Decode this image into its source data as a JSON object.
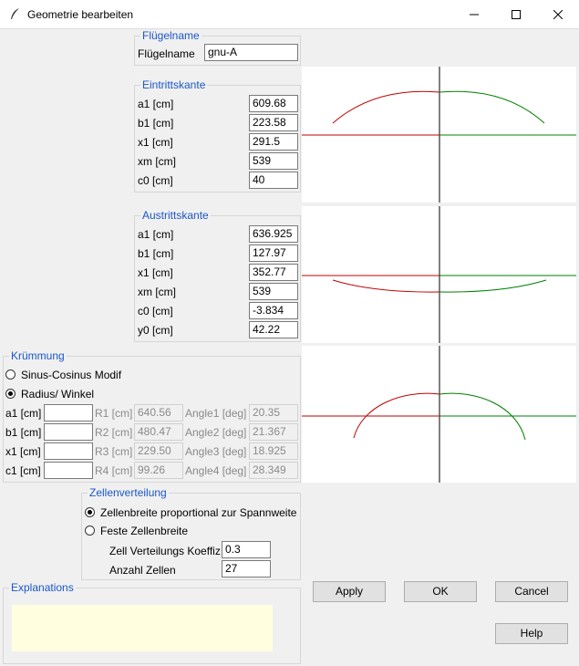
{
  "window": {
    "title": "Geometrie bearbeiten"
  },
  "wing_name": {
    "group_label": "Flügelname",
    "label": "Flügelname",
    "value": "gnu-A"
  },
  "leading_edge": {
    "group_label": "Eintrittskante",
    "fields": [
      {
        "label": "a1 [cm]",
        "value": "609.68"
      },
      {
        "label": "b1 [cm]",
        "value": "223.58"
      },
      {
        "label": "x1 [cm]",
        "value": "291.5"
      },
      {
        "label": "xm [cm]",
        "value": "539"
      },
      {
        "label": "c0 [cm]",
        "value": "40"
      }
    ]
  },
  "trailing_edge": {
    "group_label": "Austrittskante",
    "fields": [
      {
        "label": "a1 [cm]",
        "value": "636.925"
      },
      {
        "label": "b1 [cm]",
        "value": "127.97"
      },
      {
        "label": "x1 [cm]",
        "value": "352.77"
      },
      {
        "label": "xm [cm]",
        "value": "539"
      },
      {
        "label": "c0 [cm]",
        "value": "-3.834"
      },
      {
        "label": "y0 [cm]",
        "value": "42.22"
      }
    ]
  },
  "curvature": {
    "group_label": "Krümmung",
    "options": [
      {
        "label": "Sinus-Cosinus Modif",
        "selected": false
      },
      {
        "label": "Radius/ Winkel",
        "selected": true
      }
    ],
    "rows": [
      {
        "label": "a1 [cm]",
        "value": "",
        "r_label": "R1 [cm]",
        "r_value": "640.56",
        "angle_label": "Angle1 [deg]",
        "angle_value": "20.35"
      },
      {
        "label": "b1 [cm]",
        "value": "",
        "r_label": "R2 [cm]",
        "r_value": "480.47",
        "angle_label": "Angle2 [deg]",
        "angle_value": "21.367"
      },
      {
        "label": "x1 [cm]",
        "value": "",
        "r_label": "R3 [cm]",
        "r_value": "229.50",
        "angle_label": "Angle3 [deg]",
        "angle_value": "18.925"
      },
      {
        "label": "c1 [cm]",
        "value": "",
        "r_label": "R4 [cm]",
        "r_value": "99.26",
        "angle_label": "Angle4 [deg]",
        "angle_value": "28.349"
      }
    ]
  },
  "cell_distribution": {
    "group_label": "Zellenverteilung",
    "options": [
      {
        "label": "Zellenbreite proportional zur Spannweite",
        "selected": true
      },
      {
        "label": "Feste Zellenbreite",
        "selected": false
      }
    ],
    "coef_label": "Zell Verteilungs Koeffiz",
    "coef_value": "0.3",
    "count_label": "Anzahl Zellen",
    "count_value": "27"
  },
  "explanations": {
    "group_label": "Explanations",
    "text": ""
  },
  "buttons": {
    "apply": "Apply",
    "ok": "OK",
    "cancel": "Cancel",
    "help": "Help"
  },
  "colors": {
    "left_curve": "#c00000",
    "right_curve": "#008000",
    "axis": "#000000",
    "group_label": "#1a56c8",
    "explanation_bg": "#ffffe0"
  }
}
